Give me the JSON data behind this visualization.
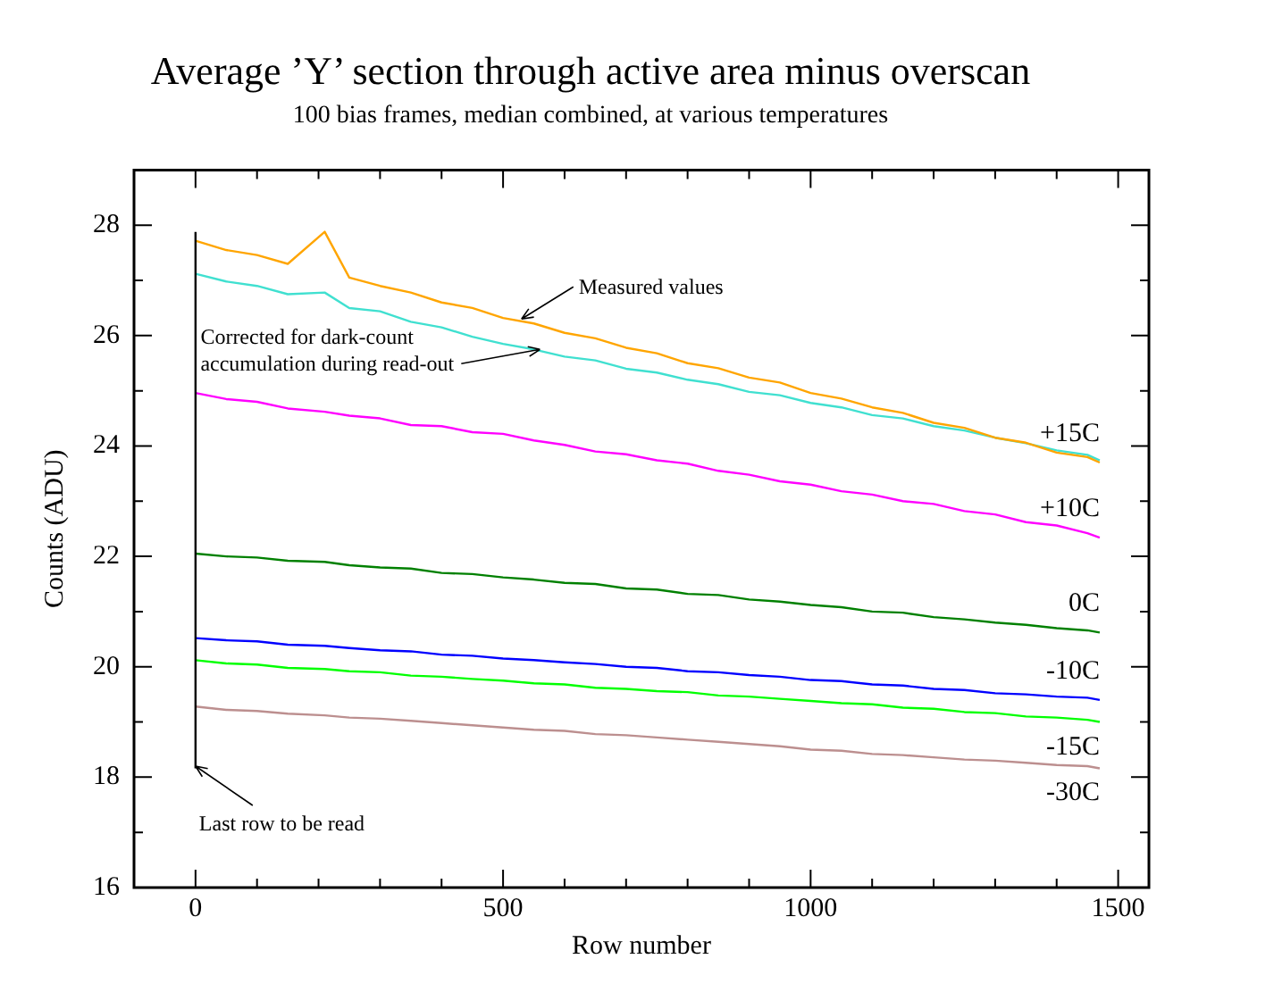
{
  "chart_data": {
    "type": "line",
    "title": "Average ’Y’ section through active area minus overscan",
    "subtitle": "100 bias frames, median combined, at various temperatures",
    "xlabel": "Row number",
    "ylabel": "Counts (ADU)",
    "x": [
      0,
      50,
      100,
      150,
      210,
      250,
      300,
      350,
      400,
      450,
      500,
      550,
      600,
      650,
      700,
      750,
      800,
      850,
      900,
      950,
      1000,
      1050,
      1100,
      1150,
      1200,
      1250,
      1300,
      1350,
      1400,
      1450,
      1470
    ],
    "series": [
      {
        "name": "+15C",
        "color": "#ffa500",
        "values": [
          27.72,
          27.55,
          27.46,
          27.3,
          27.88,
          27.05,
          26.9,
          26.78,
          26.6,
          26.5,
          26.32,
          26.22,
          26.05,
          25.95,
          25.78,
          25.68,
          25.5,
          25.41,
          25.24,
          25.15,
          24.96,
          24.86,
          24.7,
          24.6,
          24.42,
          24.33,
          24.15,
          24.06,
          23.88,
          23.8,
          23.7
        ]
      },
      {
        "color": "#40e0d0",
        "values": [
          27.12,
          26.98,
          26.9,
          26.75,
          26.78,
          26.5,
          26.44,
          26.25,
          26.15,
          25.98,
          25.85,
          25.75,
          25.62,
          25.55,
          25.4,
          25.33,
          25.2,
          25.12,
          24.98,
          24.92,
          24.78,
          24.7,
          24.56,
          24.5,
          24.36,
          24.28,
          24.15,
          24.05,
          23.92,
          23.84,
          23.74
        ]
      },
      {
        "name": "+10C",
        "color": "#ff00ff",
        "values": [
          24.96,
          24.85,
          24.8,
          24.68,
          24.62,
          24.55,
          24.5,
          24.38,
          24.36,
          24.25,
          24.22,
          24.1,
          24.02,
          23.9,
          23.85,
          23.74,
          23.68,
          23.55,
          23.48,
          23.36,
          23.3,
          23.18,
          23.12,
          23.0,
          22.95,
          22.82,
          22.76,
          22.62,
          22.56,
          22.42,
          22.34
        ]
      },
      {
        "name": "0C",
        "color": "#008000",
        "values": [
          22.05,
          22.0,
          21.98,
          21.92,
          21.9,
          21.84,
          21.8,
          21.78,
          21.7,
          21.68,
          21.62,
          21.58,
          21.52,
          21.5,
          21.42,
          21.4,
          21.32,
          21.3,
          21.22,
          21.18,
          21.12,
          21.08,
          21.0,
          20.98,
          20.9,
          20.86,
          20.8,
          20.76,
          20.7,
          20.66,
          20.62
        ]
      },
      {
        "name": "-10C",
        "color": "#0000ff",
        "values": [
          20.52,
          20.48,
          20.46,
          20.4,
          20.38,
          20.34,
          20.3,
          20.28,
          20.22,
          20.2,
          20.15,
          20.12,
          20.08,
          20.05,
          20.0,
          19.98,
          19.92,
          19.9,
          19.85,
          19.82,
          19.76,
          19.74,
          19.68,
          19.66,
          19.6,
          19.58,
          19.52,
          19.5,
          19.46,
          19.44,
          19.4
        ]
      },
      {
        "name": "-15C",
        "color": "#00ff00",
        "values": [
          20.12,
          20.06,
          20.04,
          19.98,
          19.96,
          19.92,
          19.9,
          19.84,
          19.82,
          19.78,
          19.75,
          19.7,
          19.68,
          19.62,
          19.6,
          19.56,
          19.54,
          19.48,
          19.46,
          19.42,
          19.38,
          19.34,
          19.32,
          19.26,
          19.24,
          19.18,
          19.16,
          19.1,
          19.08,
          19.04,
          19.0
        ]
      },
      {
        "name": "-30C",
        "color": "#bc8f8f",
        "values": [
          19.28,
          19.22,
          19.2,
          19.15,
          19.12,
          19.08,
          19.06,
          19.02,
          18.98,
          18.94,
          18.9,
          18.86,
          18.84,
          18.78,
          18.76,
          18.72,
          18.68,
          18.64,
          18.6,
          18.56,
          18.5,
          18.48,
          18.42,
          18.4,
          18.36,
          18.32,
          18.3,
          18.26,
          18.22,
          18.2,
          18.16
        ]
      }
    ],
    "xlim": [
      -100,
      1550
    ],
    "xticks": [
      0,
      {
        "value": 100,
        "label": null
      },
      {
        "value": 200,
        "label": null
      },
      {
        "value": 300,
        "label": null
      },
      {
        "value": 400,
        "label": null
      },
      500,
      {
        "value": 600,
        "label": null
      },
      {
        "value": 700,
        "label": null
      },
      {
        "value": 800,
        "label": null
      },
      {
        "value": 900,
        "label": null
      },
      1000,
      {
        "value": 1100,
        "label": null
      },
      {
        "value": 1200,
        "label": null
      },
      {
        "value": 1300,
        "label": null
      },
      {
        "value": 1400,
        "label": null
      },
      1500
    ],
    "ylim": [
      16,
      29
    ],
    "yticks": [
      16,
      {
        "value": 17,
        "label": null
      },
      18,
      {
        "value": 19,
        "label": null
      },
      20,
      {
        "value": 21,
        "label": null
      },
      22,
      {
        "value": 23,
        "label": null
      },
      24,
      {
        "value": 25,
        "label": null
      },
      26,
      {
        "value": 27,
        "label": null
      },
      28
    ],
    "ref_lines": [
      {
        "axis": "x",
        "value": 0,
        "color": "#000000"
      }
    ],
    "annotations": [
      {
        "text": "Measured values",
        "x": 530,
        "y": 26.3
      },
      {
        "text": "Corrected for dark-count accumulation during read-out",
        "x": 560,
        "y": 25.75
      },
      {
        "text": "Last row to be read",
        "x": 0,
        "y": 18.2
      }
    ],
    "legend": false
  }
}
